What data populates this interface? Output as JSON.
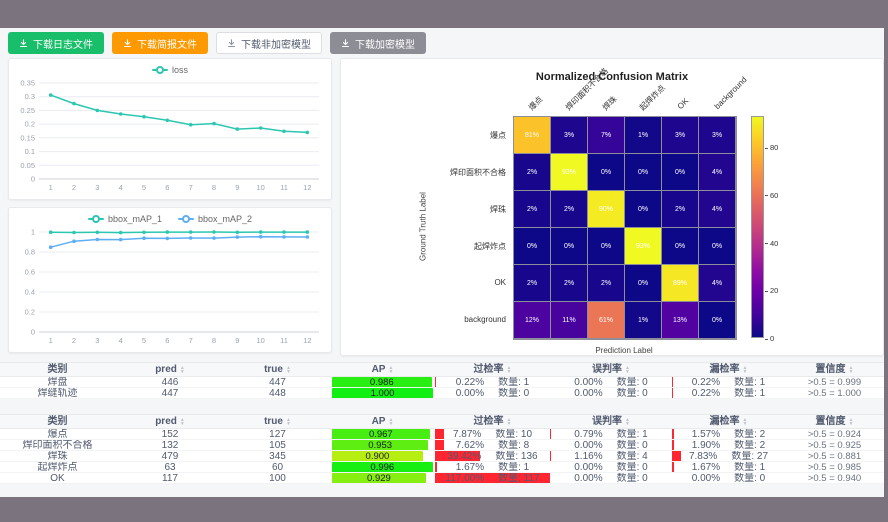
{
  "colors": {
    "teal": "#2bc7b0",
    "blue": "#5eaef5",
    "grid": "#e9ecf2",
    "tick_text": "#9aa2b1",
    "rate_bar_red": "#ff2531",
    "page_frame": "#7b747f",
    "content_bg": "#f5f6f8"
  },
  "icons": {
    "sort_asc": "▲",
    "sort_desc": "▼",
    "download": "download-arrow"
  },
  "toolbar": {
    "buttons": [
      {
        "label": "下载日志文件",
        "style": "green"
      },
      {
        "label": "下载简报文件",
        "style": "orange"
      },
      {
        "label": "下载非加密模型",
        "style": "plain"
      },
      {
        "label": "下载加密模型",
        "style": "gray"
      }
    ]
  },
  "chart_data": [
    {
      "type": "line",
      "legend": [
        "loss"
      ],
      "x": [
        1,
        2,
        3,
        4,
        5,
        6,
        7,
        8,
        9,
        10,
        11,
        12
      ],
      "series": [
        {
          "name": "loss",
          "color": "#2bc7b0",
          "values": [
            0.306,
            0.275,
            0.25,
            0.237,
            0.227,
            0.214,
            0.198,
            0.202,
            0.182,
            0.186,
            0.174,
            0.17
          ]
        }
      ],
      "ylim": [
        0,
        0.35
      ],
      "yticks": [
        0,
        0.05,
        0.1,
        0.15,
        0.2,
        0.25,
        0.3,
        0.35
      ],
      "grid": true,
      "legend_position": "top"
    },
    {
      "type": "line",
      "legend": [
        "bbox_mAP_1",
        "bbox_mAP_2"
      ],
      "x": [
        1,
        2,
        3,
        4,
        5,
        6,
        7,
        8,
        9,
        10,
        11,
        12
      ],
      "series": [
        {
          "name": "bbox_mAP_1",
          "color": "#2bc7b0",
          "values": [
            0.998,
            0.995,
            0.997,
            0.994,
            0.997,
            0.999,
            0.999,
            1.0,
            0.997,
            0.999,
            0.999,
            0.999
          ]
        },
        {
          "name": "bbox_mAP_2",
          "color": "#5eaef5",
          "values": [
            0.848,
            0.908,
            0.925,
            0.924,
            0.938,
            0.936,
            0.94,
            0.939,
            0.949,
            0.953,
            0.951,
            0.95
          ]
        }
      ],
      "ylim": [
        0,
        1
      ],
      "yticks": [
        0,
        0.2,
        0.4,
        0.6,
        0.8,
        1
      ],
      "grid": true,
      "legend_position": "top"
    },
    {
      "type": "heatmap",
      "title": "Normalized Confusion Matrix",
      "xlabel": "Prediction Label",
      "ylabel": "Ground Truth Label",
      "labels": [
        "爆点",
        "焊印面积不合格",
        "焊珠",
        "起焊炸点",
        "OK",
        "background"
      ],
      "matrix": [
        [
          81,
          3,
          7,
          1,
          3,
          3
        ],
        [
          2,
          93,
          0,
          0,
          0,
          4
        ],
        [
          2,
          2,
          90,
          0,
          2,
          4
        ],
        [
          0,
          0,
          0,
          93,
          0,
          0
        ],
        [
          2,
          2,
          2,
          0,
          89,
          4
        ],
        [
          12,
          11,
          61,
          1,
          13,
          0
        ]
      ],
      "unit": "%",
      "vmin": 0,
      "vmax": 93,
      "colormap": "plasma",
      "colorbar_ticks": [
        0,
        20,
        40,
        60,
        80
      ]
    }
  ],
  "tables": {
    "count_label": "数量:",
    "columns": [
      {
        "key": "cls",
        "label": "类别",
        "sortable": false
      },
      {
        "key": "pred",
        "label": "pred",
        "sortable": true
      },
      {
        "key": "true",
        "label": "true",
        "sortable": true
      },
      {
        "key": "ap",
        "label": "AP",
        "sortable": true
      },
      {
        "key": "over",
        "label": "过检率",
        "sortable": true
      },
      {
        "key": "mis",
        "label": "误判率",
        "sortable": true
      },
      {
        "key": "miss",
        "label": "漏检率",
        "sortable": true
      },
      {
        "key": "conf",
        "label": "置信度",
        "sortable": true
      }
    ],
    "table1": [
      {
        "cls": "焊盘",
        "pred": "446",
        "true": "447",
        "ap": "0.986",
        "over": {
          "pct": "0.22%",
          "val": 0.22,
          "n": "1"
        },
        "mis": {
          "pct": "0.00%",
          "val": 0,
          "n": "0"
        },
        "miss": {
          "pct": "0.22%",
          "val": 0.22,
          "n": "1"
        },
        "conf": ">0.5 = 0.999"
      },
      {
        "cls": "焊缝轨迹",
        "pred": "447",
        "true": "448",
        "ap": "1.000",
        "over": {
          "pct": "0.00%",
          "val": 0,
          "n": "0"
        },
        "mis": {
          "pct": "0.00%",
          "val": 0,
          "n": "0"
        },
        "miss": {
          "pct": "0.22%",
          "val": 0.22,
          "n": "1"
        },
        "conf": ">0.5 = 1.000"
      }
    ],
    "table2": [
      {
        "cls": "爆点",
        "pred": "152",
        "true": "127",
        "ap": "0.967",
        "over": {
          "pct": "7.87%",
          "val": 7.87,
          "n": "10"
        },
        "mis": {
          "pct": "0.79%",
          "val": 0.79,
          "n": "1"
        },
        "miss": {
          "pct": "1.57%",
          "val": 1.57,
          "n": "2"
        },
        "conf": ">0.5 = 0.924"
      },
      {
        "cls": "焊印面积不合格",
        "pred": "132",
        "true": "105",
        "ap": "0.953",
        "over": {
          "pct": "7.62%",
          "val": 7.62,
          "n": "8"
        },
        "mis": {
          "pct": "0.00%",
          "val": 0,
          "n": "0"
        },
        "miss": {
          "pct": "1.90%",
          "val": 1.9,
          "n": "2"
        },
        "conf": ">0.5 = 0.925"
      },
      {
        "cls": "焊珠",
        "pred": "479",
        "true": "345",
        "ap": "0.900",
        "over": {
          "pct": "39.42%",
          "val": 39.42,
          "n": "136"
        },
        "mis": {
          "pct": "1.16%",
          "val": 1.16,
          "n": "4"
        },
        "miss": {
          "pct": "7.83%",
          "val": 7.83,
          "n": "27"
        },
        "conf": ">0.5 = 0.881"
      },
      {
        "cls": "起焊炸点",
        "pred": "63",
        "true": "60",
        "ap": "0.996",
        "over": {
          "pct": "1.67%",
          "val": 1.67,
          "n": "1"
        },
        "mis": {
          "pct": "0.00%",
          "val": 0,
          "n": "0"
        },
        "miss": {
          "pct": "1.67%",
          "val": 1.67,
          "n": "1"
        },
        "conf": ">0.5 = 0.985"
      },
      {
        "cls": "OK",
        "pred": "117",
        "true": "100",
        "ap": "0.929",
        "over": {
          "pct": "117.00%",
          "val": 117,
          "n": "117"
        },
        "mis": {
          "pct": "0.00%",
          "val": 0,
          "n": "0"
        },
        "miss": {
          "pct": "0.00%",
          "val": 0,
          "n": "0"
        },
        "conf": ">0.5 = 0.940"
      }
    ]
  }
}
